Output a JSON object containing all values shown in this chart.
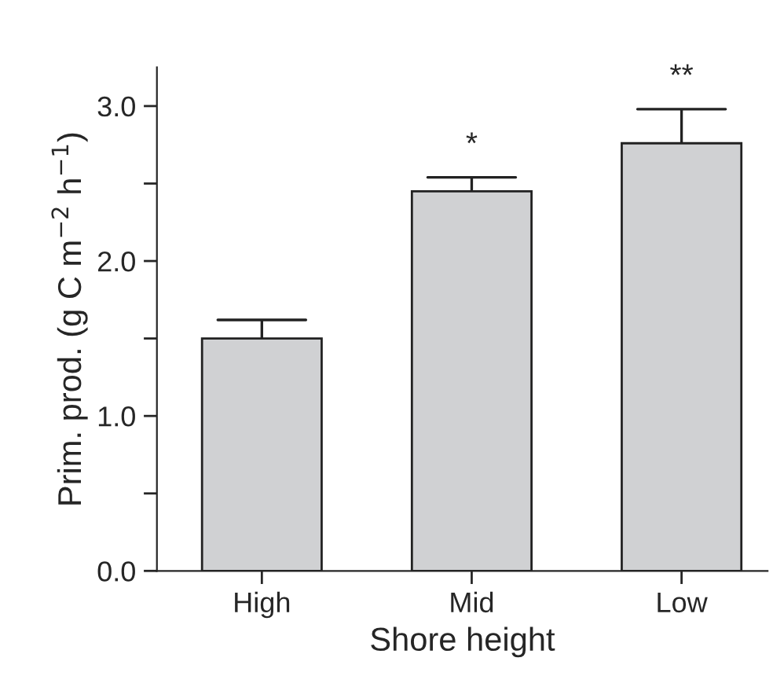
{
  "chart_data": {
    "type": "bar",
    "xlabel": "Shore height",
    "ylabel": "Prim. prod. (g C m$^{−2}$ h$^{−1}$)",
    "categories": [
      "High",
      "Mid",
      "Low"
    ],
    "values": [
      1.5,
      2.45,
      2.76
    ],
    "color": "#d0d1d3",
    "errors": [
      [
        1.5,
        1.62
      ],
      [
        2.45,
        2.54
      ],
      [
        2.76,
        2.98
      ]
    ],
    "ylim": [
      0,
      3.25
    ],
    "yticks": [
      {
        "value": 0,
        "label": "0.0"
      },
      {
        "value": 0.5,
        "label": null
      },
      {
        "value": 1.0,
        "label": "1.0"
      },
      {
        "value": 1.5,
        "label": null
      },
      {
        "value": 2.0,
        "label": "2.0"
      },
      {
        "value": 2.5,
        "label": null
      },
      {
        "value": 3.0,
        "label": "3.0"
      }
    ],
    "annotations": [
      "*",
      "**"
    ],
    "grid": false,
    "legend": false
  }
}
